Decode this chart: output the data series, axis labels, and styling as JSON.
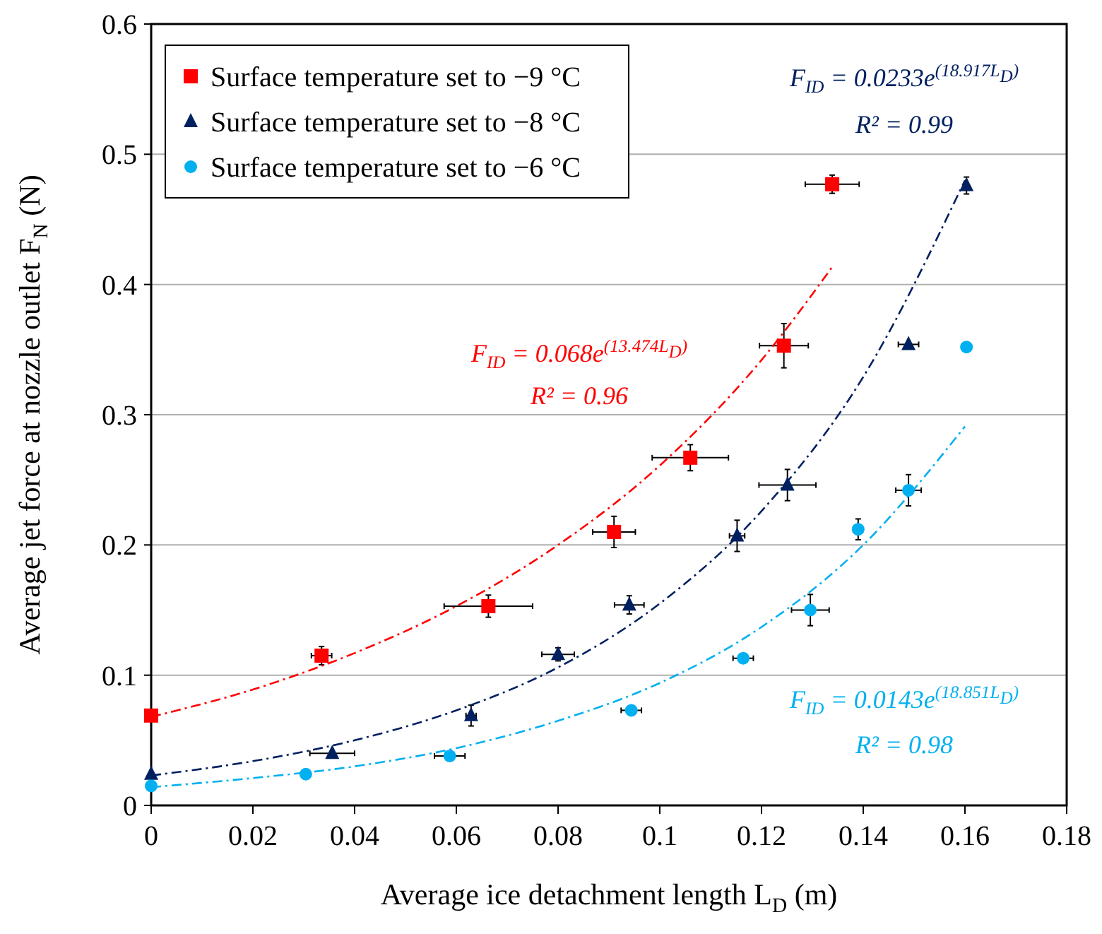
{
  "chart_data": {
    "type": "scatter",
    "xlabel": "Average ice detachment length L$_{D}$ (m)",
    "ylabel": "Average jet force at nozzle outlet F$_{N}$ (N)",
    "xlim": [
      0,
      0.18
    ],
    "xticks": [
      0,
      0.02,
      0.04,
      0.06,
      0.08,
      0.1,
      0.12,
      0.14,
      0.16,
      0.18
    ],
    "ylim": [
      0,
      0.6
    ],
    "yticks": [
      0,
      0.1,
      0.2,
      0.3,
      0.4,
      0.5,
      0.6
    ],
    "grid": "y",
    "legend": "top left",
    "series": [
      {
        "name": "Surface temperature set to −9 °C",
        "color": "#ff0000",
        "marker": "square",
        "x": [
          0,
          0.0335,
          0.0663,
          0.091,
          0.106,
          0.1244,
          0.1339
        ],
        "values": [
          0.069,
          0.115,
          0.153,
          0.21,
          0.267,
          0.353,
          0.477
        ],
        "xerrors": [
          null,
          0.002,
          0.0087,
          0.0042,
          0.0075,
          0.0048,
          0.0053
        ],
        "errors": [
          null,
          0.007,
          0.0085,
          0.012,
          0.01,
          0.017,
          0.007
        ]
      },
      {
        "name": "Surface temperature set to −8 °C",
        "color": "#002060",
        "marker": "triangle",
        "x": [
          0,
          0.0356,
          0.0629,
          0.08,
          0.094,
          0.1152,
          0.1251,
          0.1489,
          0.1603
        ],
        "values": [
          0.024,
          0.04,
          0.069,
          0.116,
          0.154,
          0.207,
          0.246,
          0.354,
          0.476
        ],
        "xerrors": [
          null,
          0.0044,
          0.001,
          0.0032,
          0.0029,
          0.0015,
          0.0056,
          0.002,
          null
        ],
        "errors": [
          null,
          null,
          0.008,
          0.005,
          0.007,
          0.012,
          0.012,
          null,
          0.0065
        ]
      },
      {
        "name": "Surface temperature set to −6 °C",
        "color": "#00b0f0",
        "marker": "circle",
        "x": [
          0,
          0.0304,
          0.0587,
          0.0944,
          0.1164,
          0.1296,
          0.139,
          0.1489,
          0.1603
        ],
        "values": [
          0.015,
          0.024,
          0.038,
          0.073,
          0.113,
          0.15,
          0.212,
          0.242,
          0.352
        ],
        "xerrors": [
          null,
          null,
          0.003,
          0.002,
          0.002,
          0.0037,
          null,
          0.0025,
          null
        ],
        "errors": [
          null,
          null,
          null,
          null,
          null,
          0.012,
          0.008,
          0.012,
          null
        ]
      },
      {
        "type": "line",
        "color": "#ff0000",
        "line_style": "dashed",
        "x": [
          0,
          0.02,
          0.04,
          0.06,
          0.08,
          0.1,
          0.12,
          0.134
        ],
        "values": [
          0.068,
          0.089,
          0.117,
          0.153,
          0.2,
          0.261,
          0.342,
          0.414
        ]
      },
      {
        "type": "line",
        "color": "#002060",
        "line_style": "dashed",
        "x": [
          0,
          0.02,
          0.04,
          0.06,
          0.08,
          0.1,
          0.12,
          0.14,
          0.16
        ],
        "values": [
          0.023,
          0.034,
          0.05,
          0.073,
          0.106,
          0.155,
          0.226,
          0.329,
          0.48
        ]
      },
      {
        "type": "line",
        "color": "#00b0f0",
        "line_style": "dashed",
        "x": [
          0,
          0.02,
          0.04,
          0.06,
          0.08,
          0.1,
          0.12,
          0.14,
          0.16
        ],
        "values": [
          0.014,
          0.021,
          0.03,
          0.044,
          0.065,
          0.094,
          0.137,
          0.2,
          0.291
        ]
      }
    ],
    "annotations": [
      "F$_{ID}$ = 0.068e$^{(13.474L}$$_{D}$$^{)}$",
      "R² = 0.96",
      "F$_{ID}$ = 0.0233e$^{(18.917L}$$_{D}$$^{)}$",
      "R² = 0.99",
      "F$_{ID}$ = 0.0143e$^{(18.851L}$$_{D}$$^{)}$",
      "R² = 0.98"
    ]
  }
}
